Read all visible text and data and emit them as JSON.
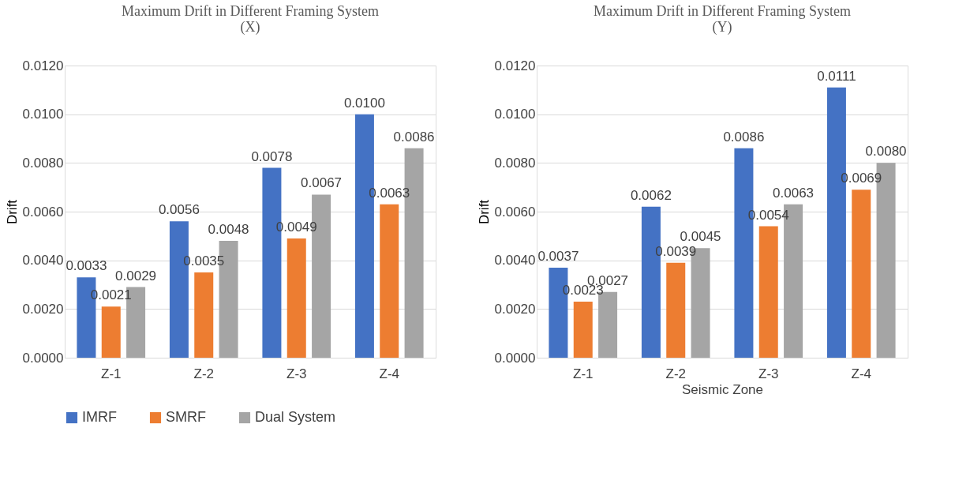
{
  "chart_data": [
    {
      "type": "bar",
      "title": [
        "Maximum Drift in Different Framing System",
        "(X)"
      ],
      "ylabel": "Drift",
      "categories": [
        "Z-1",
        "Z-2",
        "Z-3",
        "Z-4"
      ],
      "series": [
        {
          "name": "IMRF",
          "color": "#4472c4",
          "values": [
            0.0033,
            0.0056,
            0.0078,
            0.01
          ],
          "value_labels": [
            "0.0033",
            "0.0056",
            "0.0078",
            "0.0100"
          ]
        },
        {
          "name": "SMRF",
          "color": "#ed7d31",
          "values": [
            0.0021,
            0.0035,
            0.0049,
            0.0063
          ],
          "value_labels": [
            "0.0021",
            "0.0035",
            "0.0049",
            "0.0063"
          ]
        },
        {
          "name": "Dual System",
          "color": "#a5a5a5",
          "values": [
            0.0029,
            0.0048,
            0.0067,
            0.0086
          ],
          "value_labels": [
            "0.0029",
            "0.0048",
            "0.0067",
            "0.0086"
          ]
        }
      ],
      "ylim": [
        0,
        0.012
      ],
      "yticks": [
        {
          "value": 0,
          "label": "0.0000"
        },
        {
          "value": 0.002,
          "label": "0.0020"
        },
        {
          "value": 0.004,
          "label": "0.0040"
        },
        {
          "value": 0.006,
          "label": "0.0060"
        },
        {
          "value": 0.008,
          "label": "0.0080"
        },
        {
          "value": 0.01,
          "label": "0.0100"
        },
        {
          "value": 0.012,
          "label": "0.0120"
        }
      ],
      "grid": "y",
      "legend": "bottom"
    },
    {
      "type": "bar",
      "title": [
        "Maximum Drift in Different Framing System",
        "(Y)"
      ],
      "xlabel": "Seismic Zone",
      "ylabel": "Drift",
      "categories": [
        "Z-1",
        "Z-2",
        "Z-3",
        "Z-4"
      ],
      "series": [
        {
          "name": "IMRF",
          "color": "#4472c4",
          "values": [
            0.0037,
            0.0062,
            0.0086,
            0.0111
          ],
          "value_labels": [
            "0.0037",
            "0.0062",
            "0.0086",
            "0.0111"
          ]
        },
        {
          "name": "SMRF",
          "color": "#ed7d31",
          "values": [
            0.0023,
            0.0039,
            0.0054,
            0.0069
          ],
          "value_labels": [
            "0.0023",
            "0.0039",
            "0.0054",
            "0.0069"
          ]
        },
        {
          "name": "Dual System",
          "color": "#a5a5a5",
          "values": [
            0.0027,
            0.0045,
            0.0063,
            0.008
          ],
          "value_labels": [
            "0.0027",
            "0.0045",
            "0.0063",
            "0.0080"
          ]
        }
      ],
      "ylim": [
        0,
        0.012
      ],
      "yticks": [
        {
          "value": 0,
          "label": "0.0000"
        },
        {
          "value": 0.002,
          "label": "0.0020"
        },
        {
          "value": 0.004,
          "label": "0.0040"
        },
        {
          "value": 0.006,
          "label": "0.0060"
        },
        {
          "value": 0.008,
          "label": "0.0080"
        },
        {
          "value": 0.01,
          "label": "0.0100"
        },
        {
          "value": 0.012,
          "label": "0.0120"
        }
      ],
      "grid": "y",
      "legend": "bottom"
    }
  ]
}
